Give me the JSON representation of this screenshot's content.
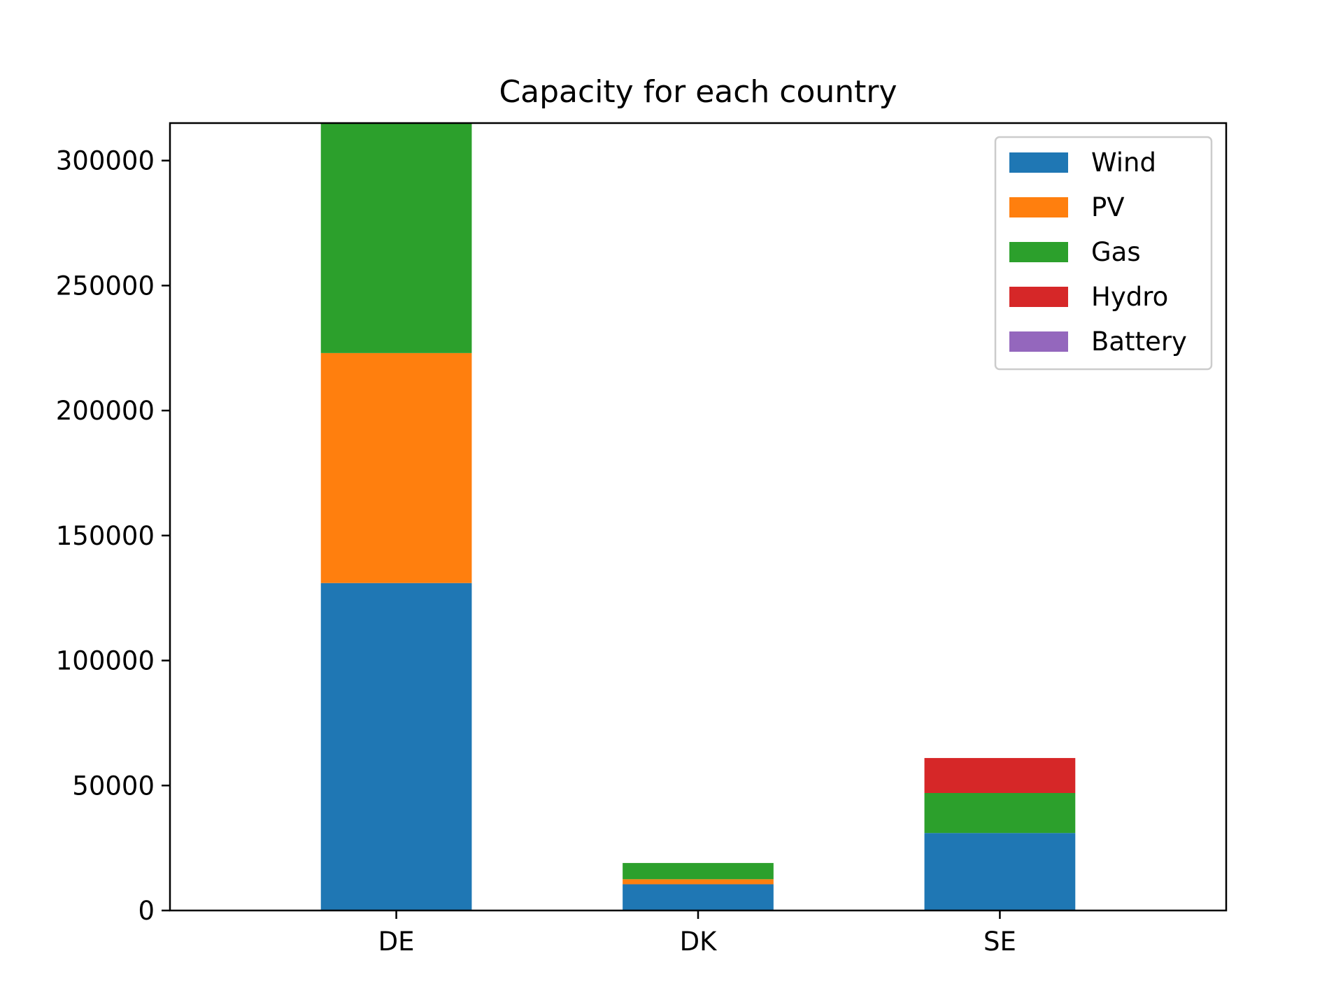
{
  "chart_data": {
    "type": "bar",
    "stacked": true,
    "title": "Capacity for each country",
    "xlabel": "",
    "ylabel": "",
    "categories": [
      "DE",
      "DK",
      "SE"
    ],
    "series": [
      {
        "name": "Wind",
        "color": "#1f77b4",
        "values": [
          131000,
          10500,
          31000
        ]
      },
      {
        "name": "PV",
        "color": "#ff7f0e",
        "values": [
          92000,
          2000,
          0
        ]
      },
      {
        "name": "Gas",
        "color": "#2ca02c",
        "values": [
          92000,
          6500,
          16000
        ]
      },
      {
        "name": "Hydro",
        "color": "#d62728",
        "values": [
          0,
          0,
          14000
        ]
      },
      {
        "name": "Battery",
        "color": "#9467bd",
        "values": [
          0,
          0,
          0
        ]
      }
    ],
    "yticks": [
      0,
      50000,
      100000,
      150000,
      200000,
      250000,
      300000
    ],
    "ytick_labels": [
      "0",
      "50000",
      "100000",
      "150000",
      "200000",
      "250000",
      "300000"
    ],
    "ylim": [
      0,
      315000
    ],
    "grid": false,
    "legend_position": "upper-right"
  }
}
